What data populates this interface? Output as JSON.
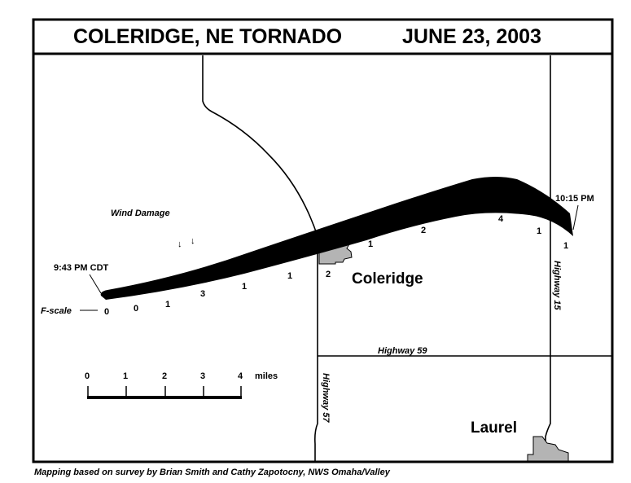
{
  "title": {
    "place": "COLERIDGE, NE TORNADO",
    "date": "JUNE 23, 2003"
  },
  "labels": {
    "start_time": "9:43 PM CDT",
    "end_time": "10:15 PM",
    "wind_damage": "Wind Damage",
    "fscale": "F-scale",
    "town_coleridge": "Coleridge",
    "town_laurel": "Laurel",
    "hwy59": "Highway 59",
    "hwy57": "Highway 57",
    "hwy15": "Highway 15"
  },
  "f_ratings": [
    "0",
    "0",
    "1",
    "3",
    "1",
    "1",
    "2",
    "1",
    "2",
    "4",
    "1",
    "1"
  ],
  "scale_bar": {
    "ticks": [
      "0",
      "1",
      "2",
      "3",
      "4"
    ],
    "unit": "miles"
  },
  "credit": "Mapping based on survey by Brian Smith and Cathy Zapotocny, NWS Omaha/Valley",
  "colors": {
    "track": "#000000",
    "town_fill": "#b4b4b4",
    "border": "#000000"
  }
}
